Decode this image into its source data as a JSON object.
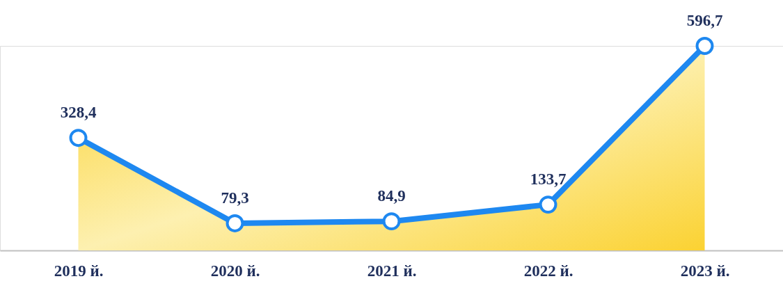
{
  "chart_data": {
    "type": "area",
    "categories": [
      "2019 й.",
      "2020 й.",
      "2021 й.",
      "2022 й.",
      "2023 й."
    ],
    "series": [
      {
        "color": "#fbd232",
        "values": [
          328.4,
          79.3,
          84.9,
          133.7,
          596.7
        ],
        "value_labels": [
          "328,4",
          "79,3",
          "84,9",
          "133,7",
          "596,7"
        ]
      }
    ],
    "tick_labels": "x",
    "marker": "circle",
    "line_style": "solid"
  }
}
